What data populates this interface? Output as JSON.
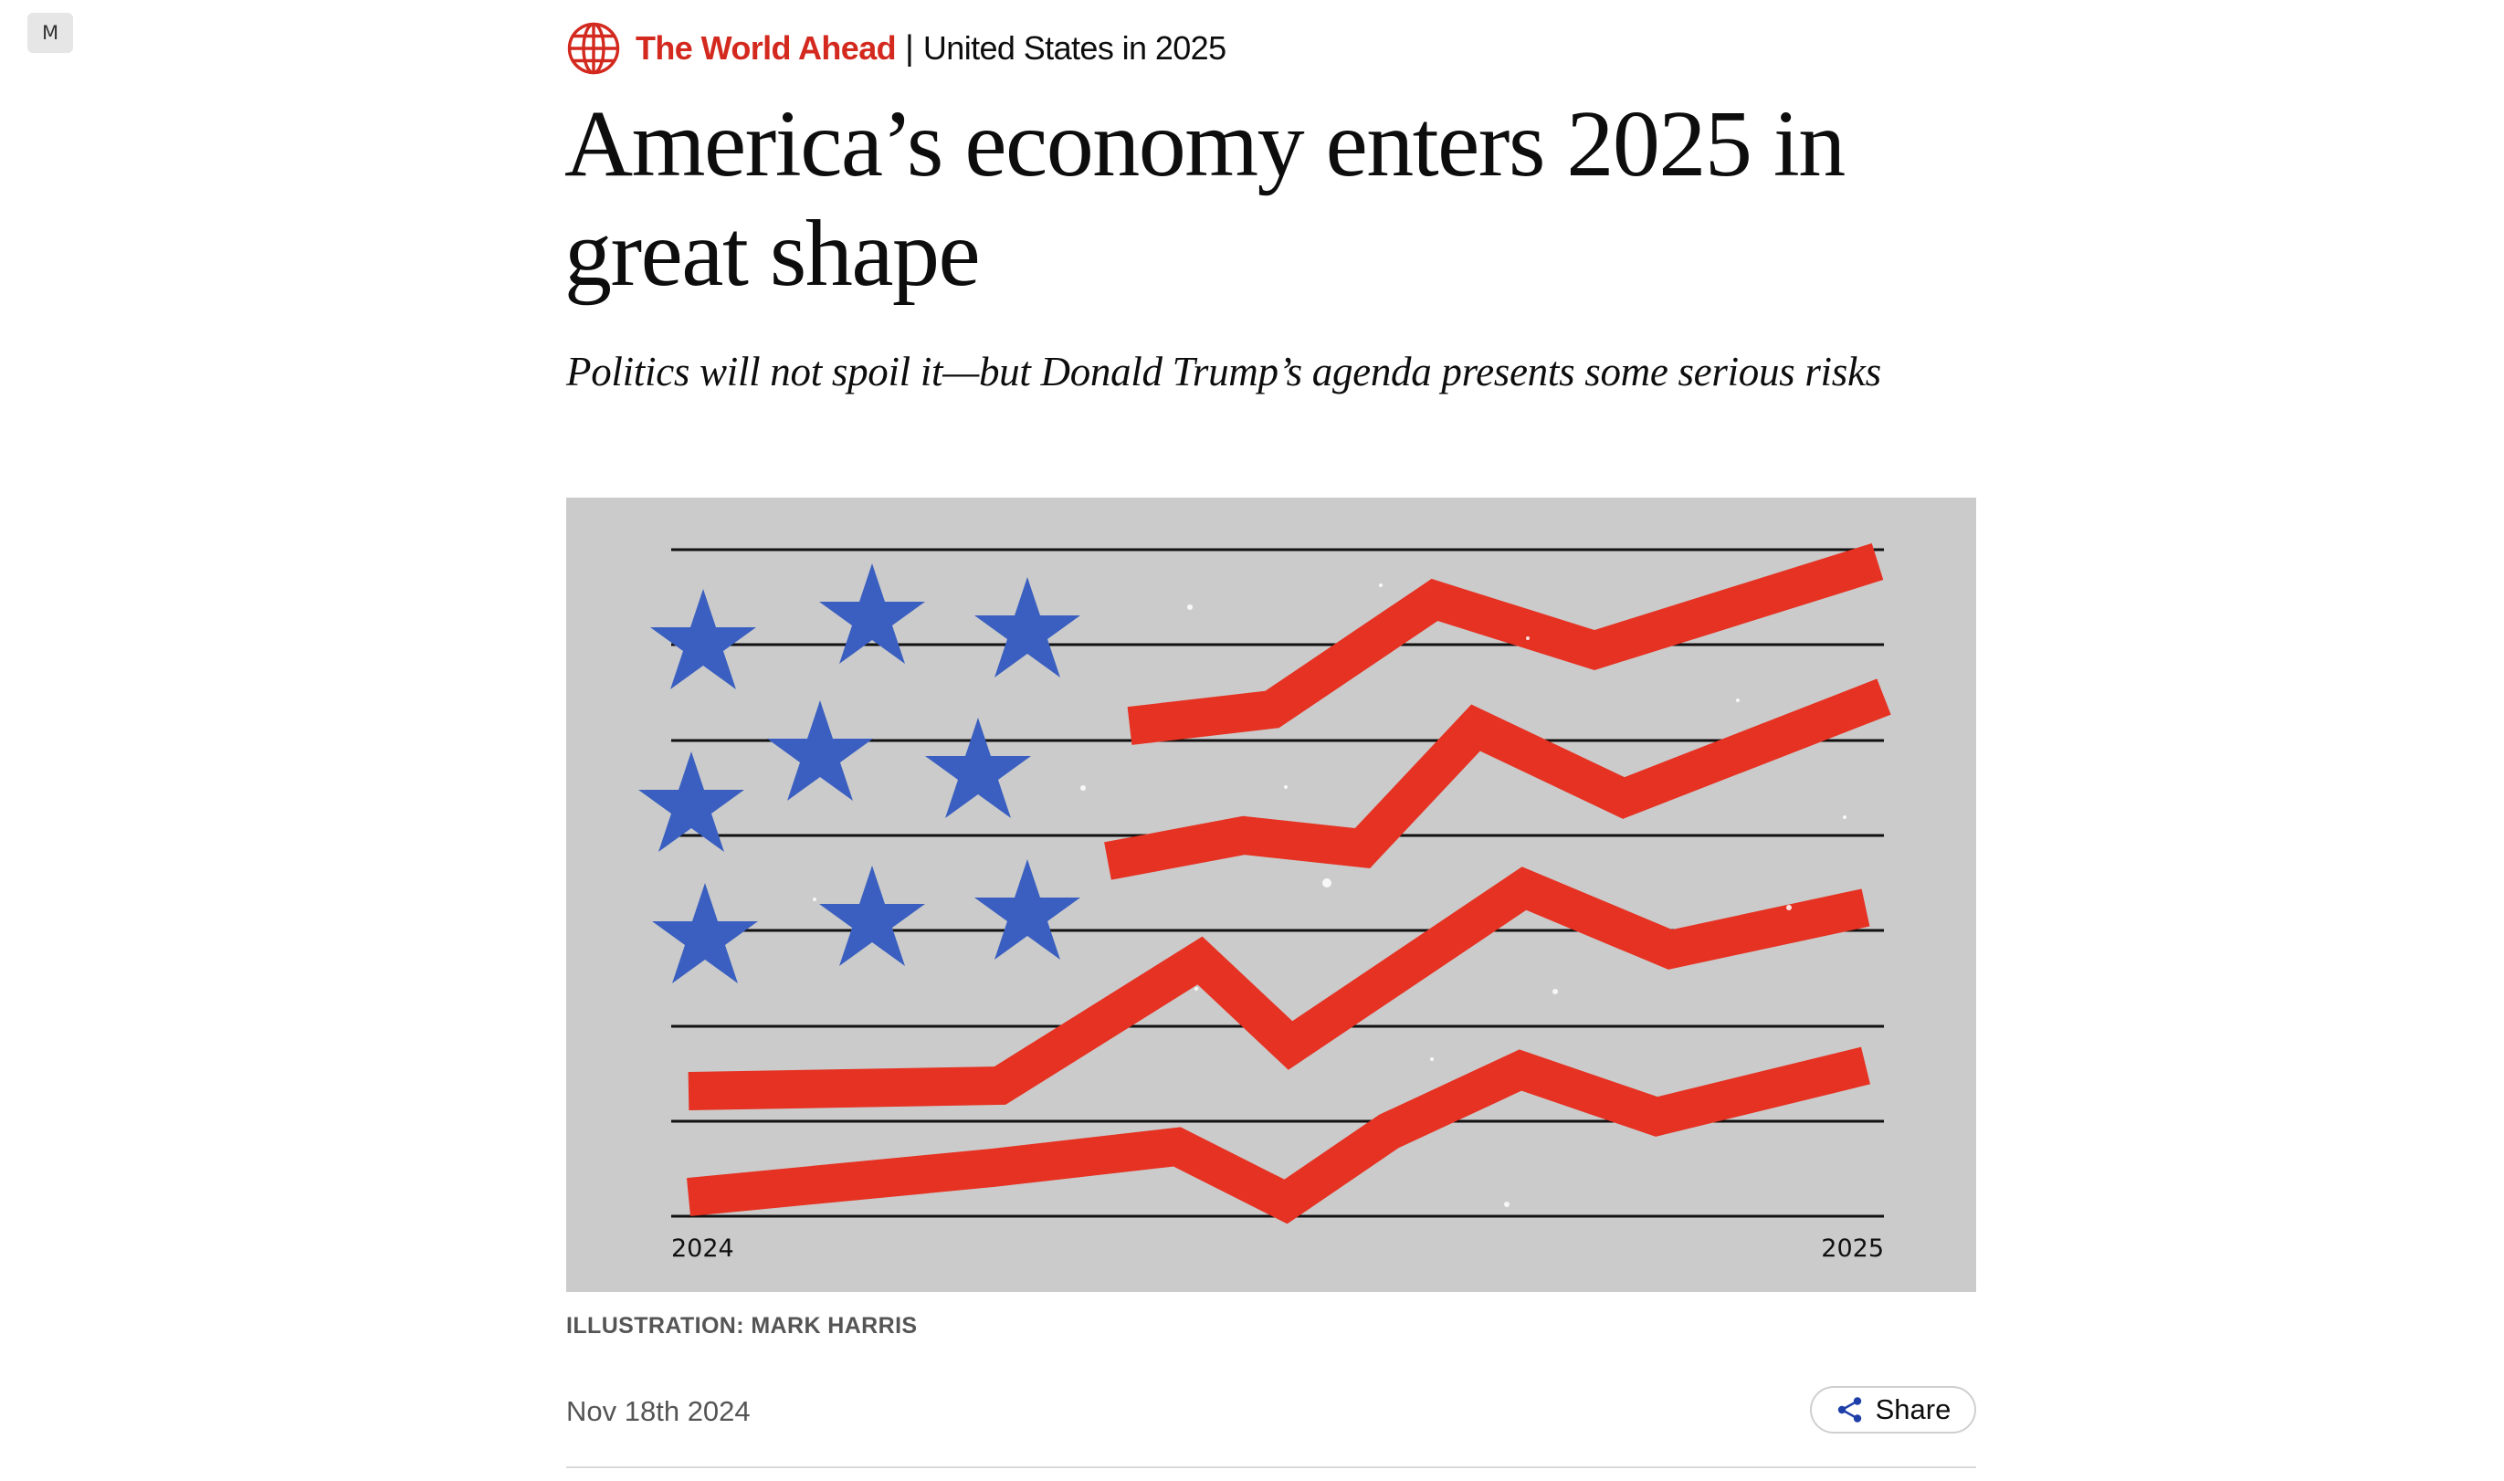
{
  "corner_badge": {
    "label": "M"
  },
  "flytitle": {
    "series": "The World Ahead",
    "separator": "|",
    "section": "United States in 2025",
    "icon": "globe-icon",
    "accent_color": "#d3291e"
  },
  "headline": "America’s economy enters 2025 in great shape",
  "standfirst": "Politics will not spoil it—but Donald Trump’s agenda presents some serious risks",
  "illustration": {
    "start_label": "2024",
    "end_label": "2025",
    "background_color": "#cbcbcb",
    "star_color": "#3a5fc0",
    "stripe_color": "#e53222",
    "credit": "ILLUSTRATION: MARK HARRIS"
  },
  "meta": {
    "date": "Nov 18th 2024",
    "share_label": "Share",
    "share_icon": "share-icon"
  }
}
